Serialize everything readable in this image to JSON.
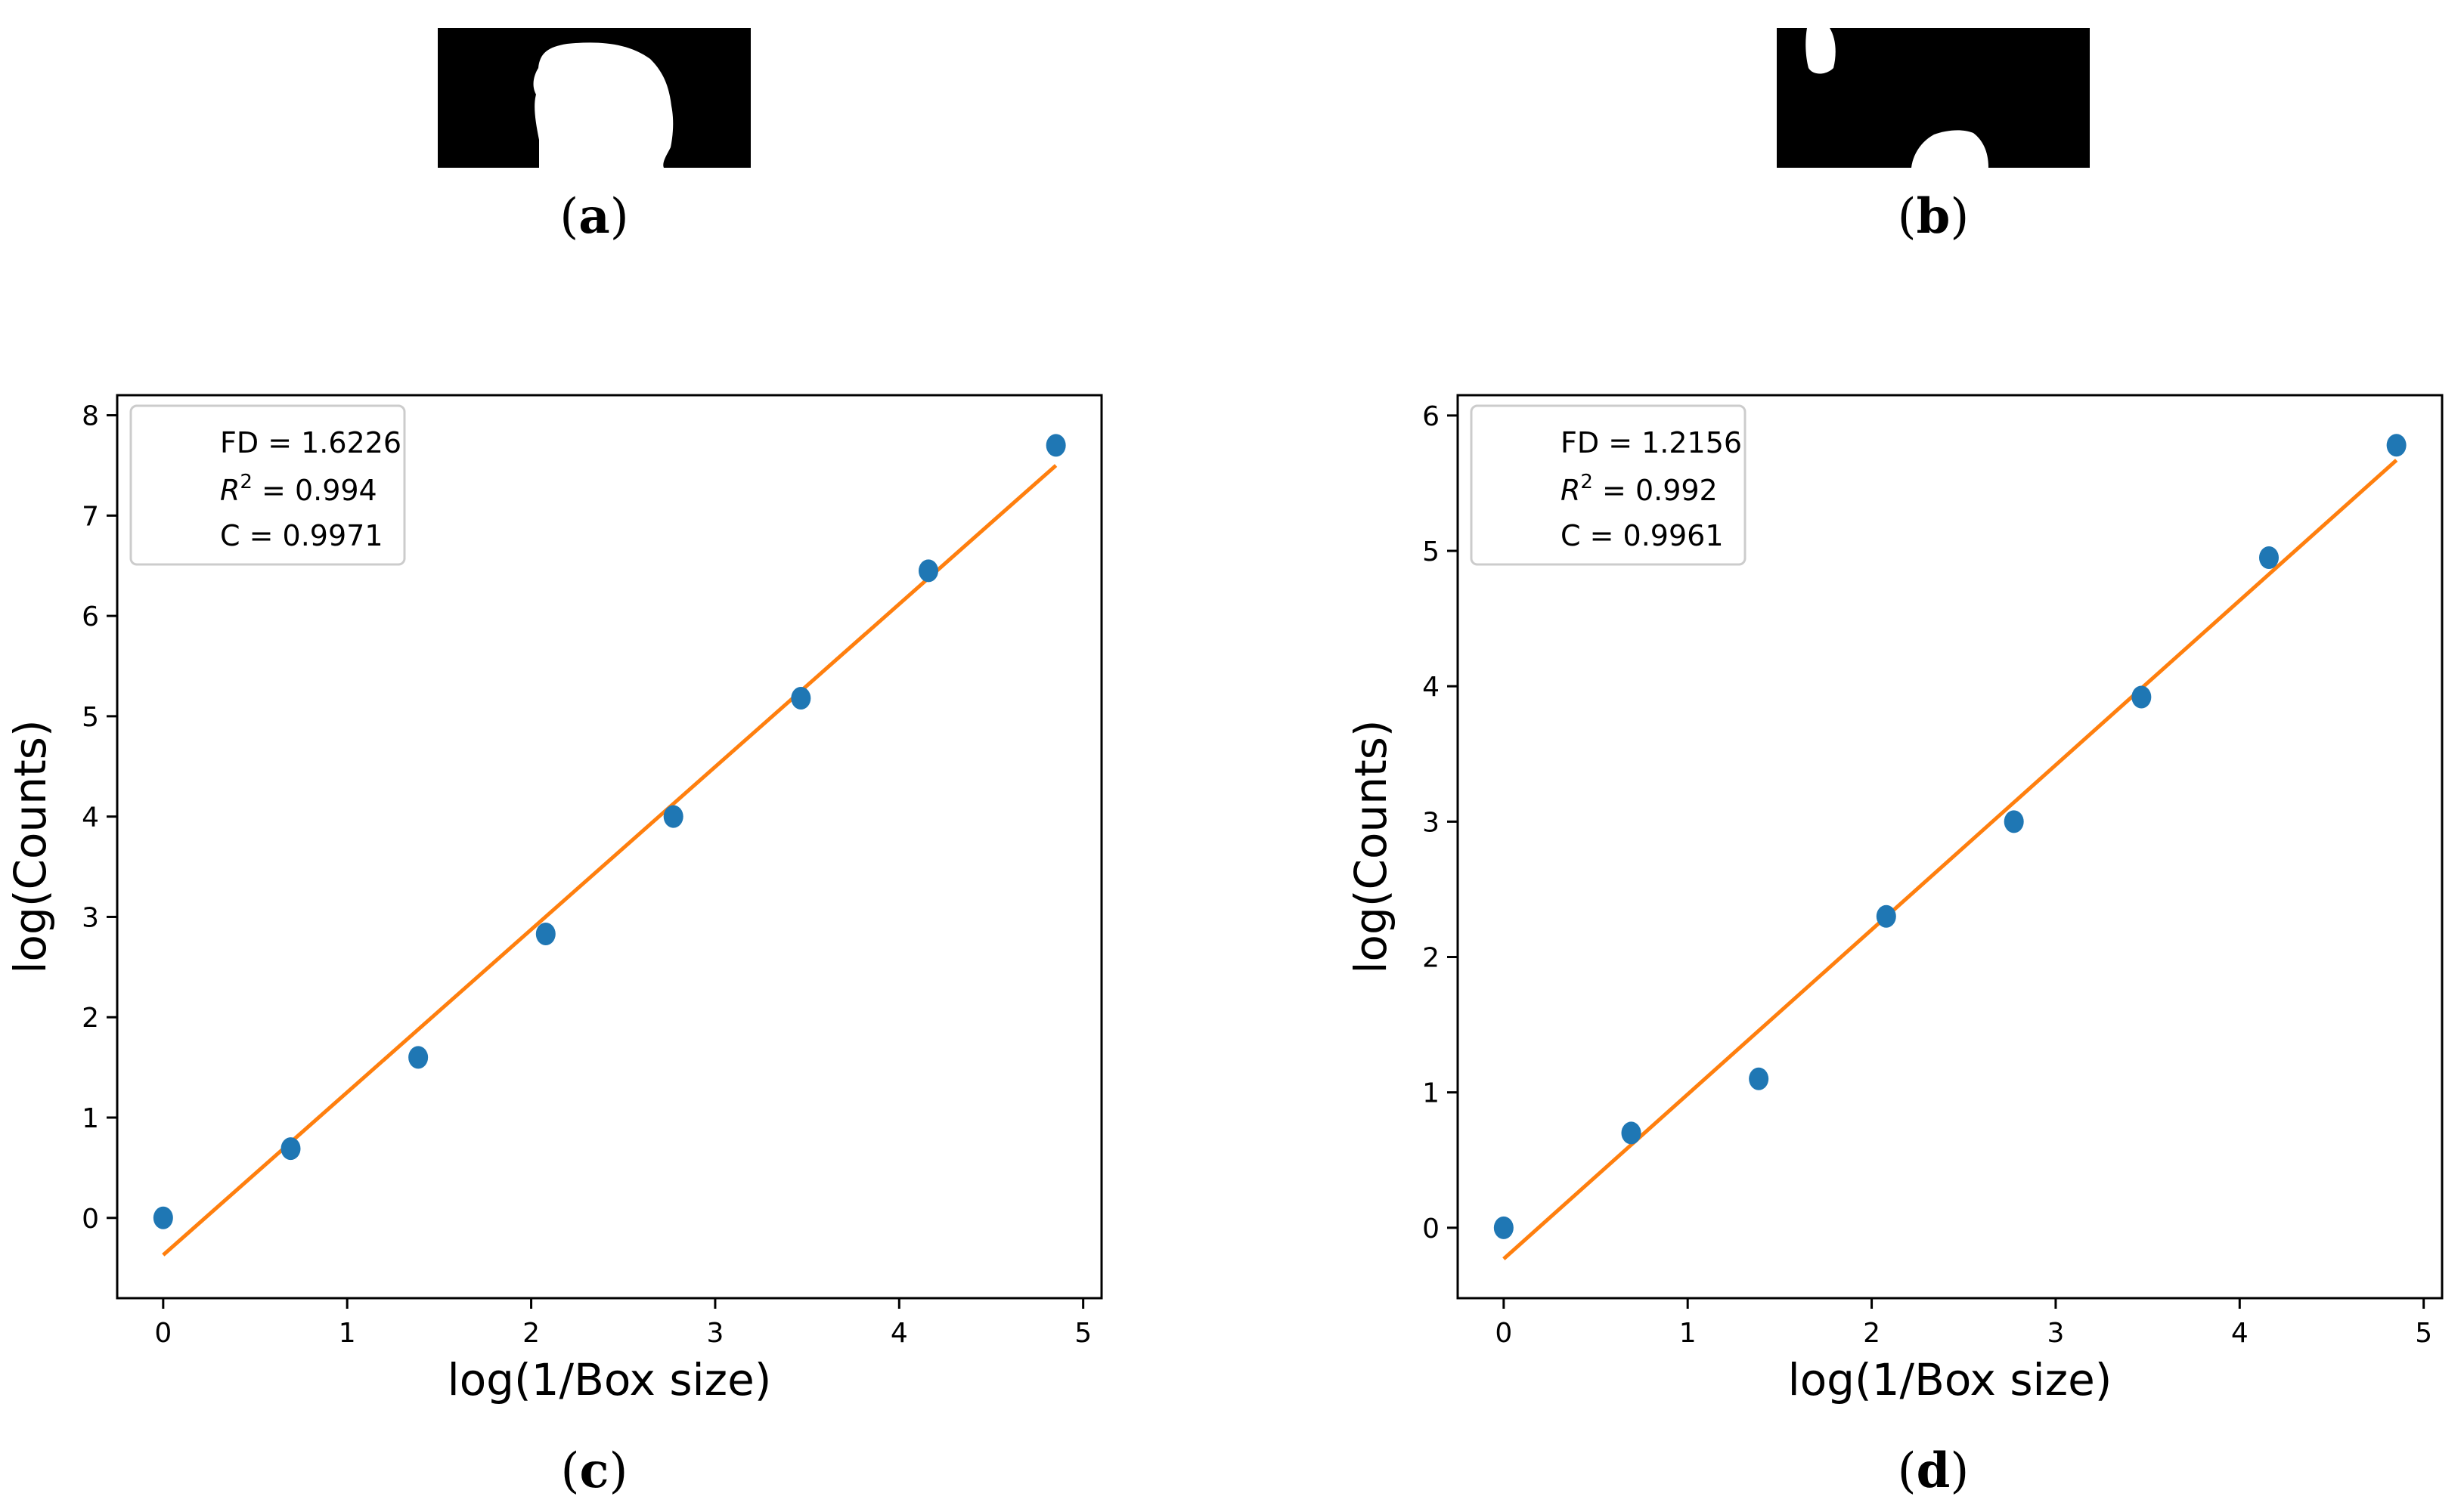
{
  "panels": {
    "a": {
      "label_open": "(",
      "letter": "a",
      "label_close": ")"
    },
    "b": {
      "label_open": "(",
      "letter": "b",
      "label_close": ")"
    },
    "c": {
      "label_open": "(",
      "letter": "c",
      "label_close": ")"
    },
    "d": {
      "label_open": "(",
      "letter": "d",
      "label_close": ")"
    }
  },
  "chart_data": [
    {
      "type": "scatter",
      "title": "",
      "xlabel": "log(1/Box size)",
      "ylabel": "log(Counts)",
      "xlim": [
        -0.25,
        5.1
      ],
      "ylim": [
        -0.8,
        8.2
      ],
      "xticks": [
        0,
        1,
        2,
        3,
        4,
        5
      ],
      "yticks": [
        0,
        1,
        2,
        3,
        4,
        5,
        6,
        7,
        8
      ],
      "grid": false,
      "legend_position": "top-left",
      "annotation": {
        "fd": "FD = 1.6226",
        "r2_prefix": "R",
        "r2_exp": "2",
        "r2_value": " = 0.994",
        "c": "C = 0.9971"
      },
      "points": {
        "x": [
          0,
          0.693,
          1.386,
          2.079,
          2.773,
          3.466,
          4.159,
          4.852
        ],
        "y": [
          0,
          0.69,
          1.6,
          2.83,
          4.0,
          5.18,
          6.45,
          7.7
        ]
      },
      "fit_line": {
        "x": [
          0,
          4.852
        ],
        "y": [
          -0.37,
          7.5
        ]
      },
      "colors": {
        "points": "#1f77b4",
        "line": "#ff7f0e"
      }
    },
    {
      "type": "scatter",
      "title": "",
      "xlabel": "log(1/Box size)",
      "ylabel": "log(Counts)",
      "xlim": [
        -0.25,
        5.1
      ],
      "ylim": [
        -0.52,
        6.15
      ],
      "xticks": [
        0,
        1,
        2,
        3,
        4,
        5
      ],
      "yticks": [
        0,
        1,
        2,
        3,
        4,
        5,
        6
      ],
      "grid": false,
      "legend_position": "top-left",
      "annotation": {
        "fd": "FD = 1.2156",
        "r2_prefix": "R",
        "r2_exp": "2",
        "r2_value": " = 0.992",
        "c": "C = 0.9961"
      },
      "points": {
        "x": [
          0,
          0.693,
          1.386,
          2.079,
          2.773,
          3.466,
          4.159,
          4.852
        ],
        "y": [
          0,
          0.7,
          1.1,
          2.3,
          3.0,
          3.92,
          4.95,
          5.78
        ]
      },
      "fit_line": {
        "x": [
          0,
          4.852
        ],
        "y": [
          -0.23,
          5.67
        ]
      },
      "colors": {
        "points": "#1f77b4",
        "line": "#ff7f0e"
      }
    }
  ]
}
